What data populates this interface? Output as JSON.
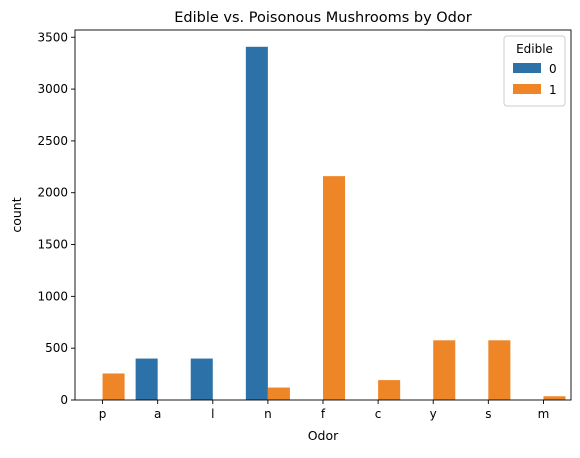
{
  "chart_data": {
    "type": "bar",
    "title": "Edible vs. Poisonous Mushrooms by Odor",
    "xlabel": "Odor",
    "ylabel": "count",
    "categories": [
      "p",
      "a",
      "l",
      "n",
      "f",
      "c",
      "y",
      "s",
      "m"
    ],
    "yticks": [
      0,
      500,
      1000,
      1500,
      2000,
      2500,
      3000,
      3500
    ],
    "ylim": [
      0,
      3570
    ],
    "grid": false,
    "legend": {
      "title": "Edible",
      "placement": "top-right"
    },
    "series": [
      {
        "name": "0",
        "color": "#2c72a8",
        "values": [
          0,
          400,
          400,
          3408,
          0,
          0,
          0,
          0,
          0
        ]
      },
      {
        "name": "1",
        "color": "#ee8627",
        "values": [
          256,
          0,
          0,
          120,
          2160,
          192,
          576,
          576,
          36
        ]
      }
    ]
  }
}
